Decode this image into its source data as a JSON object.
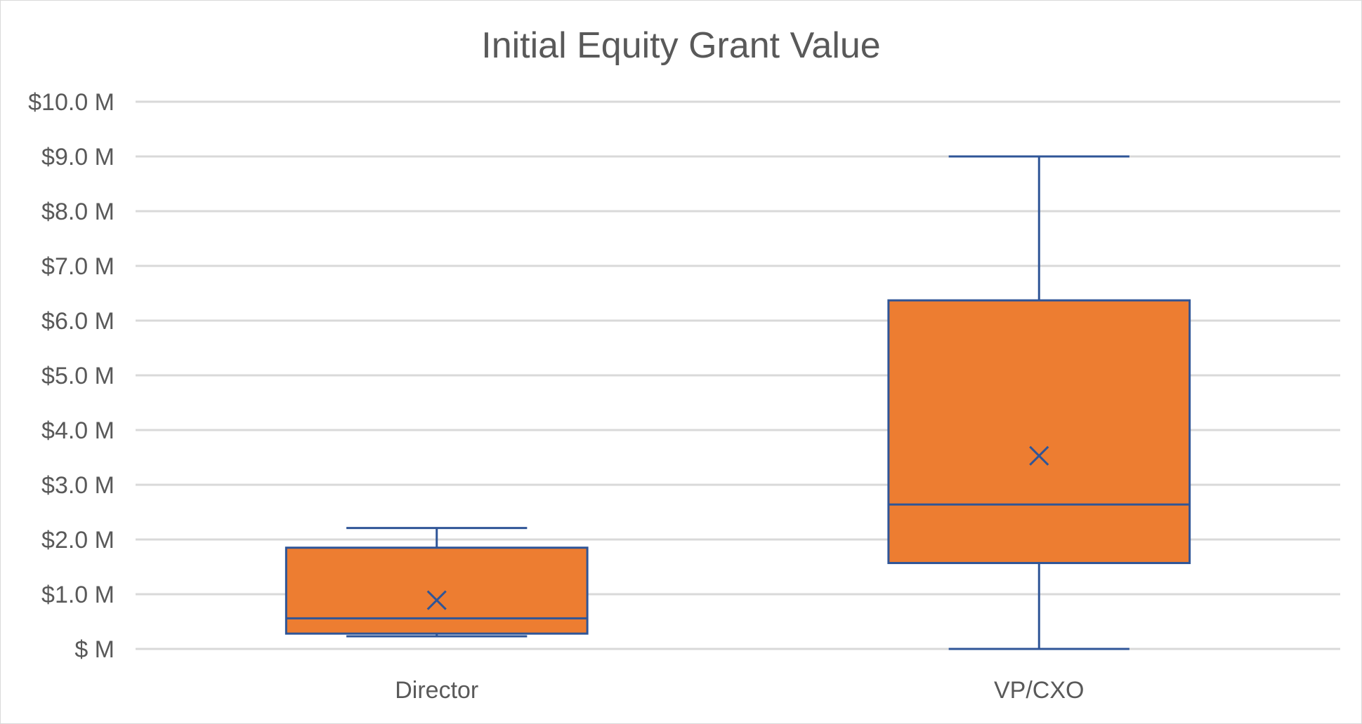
{
  "chart_data": {
    "type": "boxplot",
    "title": "Initial Equity Grant Value",
    "xlabel": "",
    "ylabel": "",
    "ylim": [
      0,
      10
    ],
    "y_unit": "M",
    "y_ticks": [
      {
        "value": 0,
        "label": "$ M"
      },
      {
        "value": 1,
        "label": "$1.0 M"
      },
      {
        "value": 2,
        "label": "$2.0 M"
      },
      {
        "value": 3,
        "label": "$3.0 M"
      },
      {
        "value": 4,
        "label": "$4.0 M"
      },
      {
        "value": 5,
        "label": "$5.0 M"
      },
      {
        "value": 6,
        "label": "$6.0 M"
      },
      {
        "value": 7,
        "label": "$7.0 M"
      },
      {
        "value": 8,
        "label": "$8.0 M"
      },
      {
        "value": 9,
        "label": "$9.0 M"
      },
      {
        "value": 10,
        "label": "$10.0 M"
      }
    ],
    "grid": true,
    "categories": [
      "Director",
      "VP/CXO"
    ],
    "boxes": [
      {
        "category": "Director",
        "min": 0.23,
        "q1": 0.28,
        "median": 0.56,
        "q3": 1.85,
        "max": 2.21,
        "mean": 0.89
      },
      {
        "category": "VP/CXO",
        "min": 0.0,
        "q1": 1.57,
        "median": 2.64,
        "q3": 6.37,
        "max": 9.0,
        "mean": 3.53
      }
    ],
    "colors": {
      "box_fill": "#ED7D31",
      "box_stroke": "#2F5597",
      "grid": "#D9D9D9",
      "text": "#595959"
    }
  }
}
